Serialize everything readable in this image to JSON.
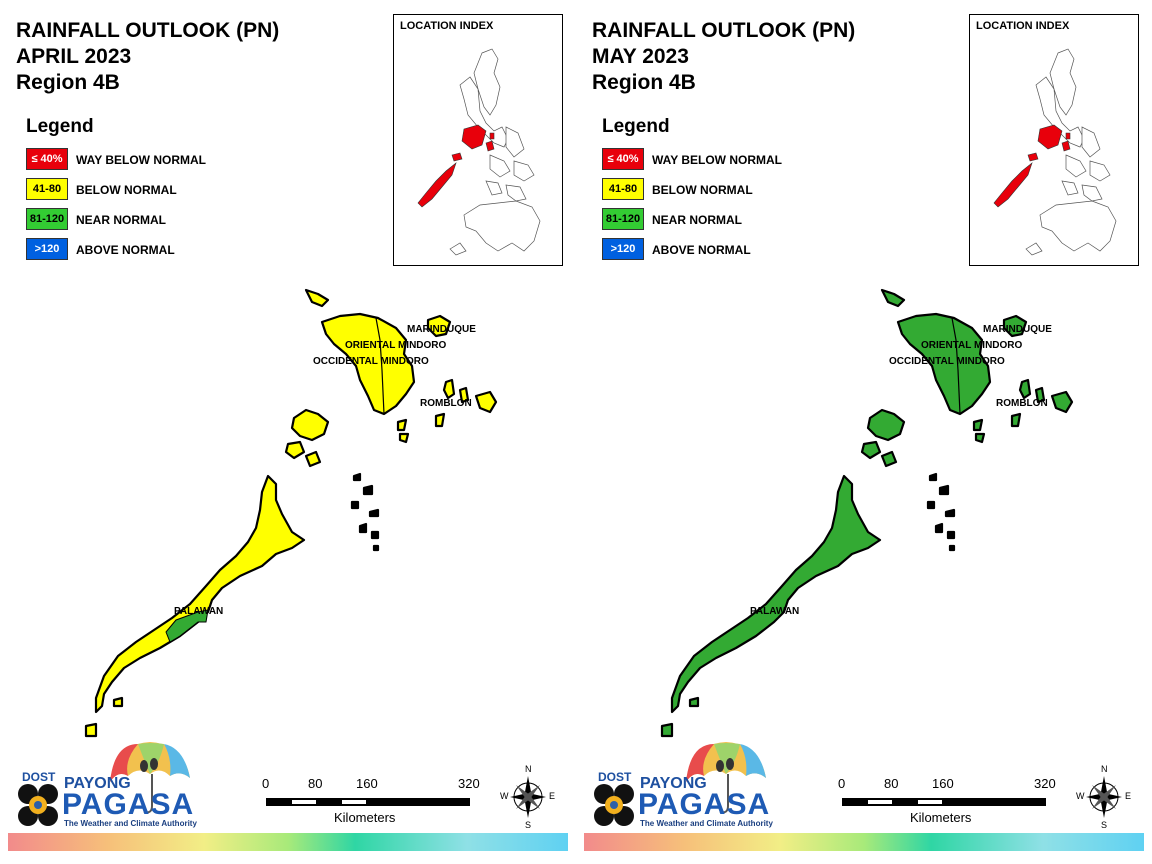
{
  "panels": [
    {
      "title": [
        "RAINFALL OUTLOOK (PN)",
        "APRIL 2023",
        "Region 4B"
      ],
      "fills": {
        "mindoro": "#ffff00",
        "marinduque": "#ffff00",
        "romblon": "#ffff00",
        "palawan_north": "#ffff00",
        "palawan_south": "#ffff00",
        "palawan_band": "#33aa33"
      }
    },
    {
      "title": [
        "RAINFALL OUTLOOK (PN)",
        "MAY 2023",
        "Region 4B"
      ],
      "fills": {
        "mindoro": "#33aa33",
        "marinduque": "#33aa33",
        "romblon": "#33aa33",
        "palawan_north": "#33aa33",
        "palawan_south": "#33aa33",
        "palawan_band": "#33aa33"
      }
    }
  ],
  "legend": {
    "heading": "Legend",
    "items": [
      {
        "code": "≤ 40%",
        "label": "WAY BELOW NORMAL",
        "color": "#e8000b",
        "text_color": "#ffffff"
      },
      {
        "code": "41-80",
        "label": "BELOW NORMAL",
        "color": "#ffff00",
        "text_color": "#000000"
      },
      {
        "code": "81-120",
        "label": "NEAR NORMAL",
        "color": "#33cc33",
        "text_color": "#000000"
      },
      {
        "code": ">120",
        "label": "ABOVE NORMAL",
        "color": "#0060e0",
        "text_color": "#ffffff"
      }
    ]
  },
  "index_map": {
    "title": "LOCATION INDEX",
    "highlight_color": "#e8000b"
  },
  "map_labels": {
    "marinduque": "MARINDUQUE",
    "oriental_mindoro": "ORIENTAL MINDORO",
    "occidental_mindoro": "OCCIDENTAL MINDORO",
    "romblon": "ROMBLON",
    "palawan": "PALAWAN"
  },
  "scale_bar": {
    "ticks": [
      "0",
      "80",
      "160",
      "320"
    ],
    "unit": "Kilometers"
  },
  "compass": {
    "n": "N",
    "e": "E",
    "s": "S",
    "w": "W"
  },
  "logo": {
    "dost": "DOST",
    "payong": "PAYONG",
    "pagasa": "PAGASA",
    "tagline": "The Weather and Climate Authority"
  }
}
